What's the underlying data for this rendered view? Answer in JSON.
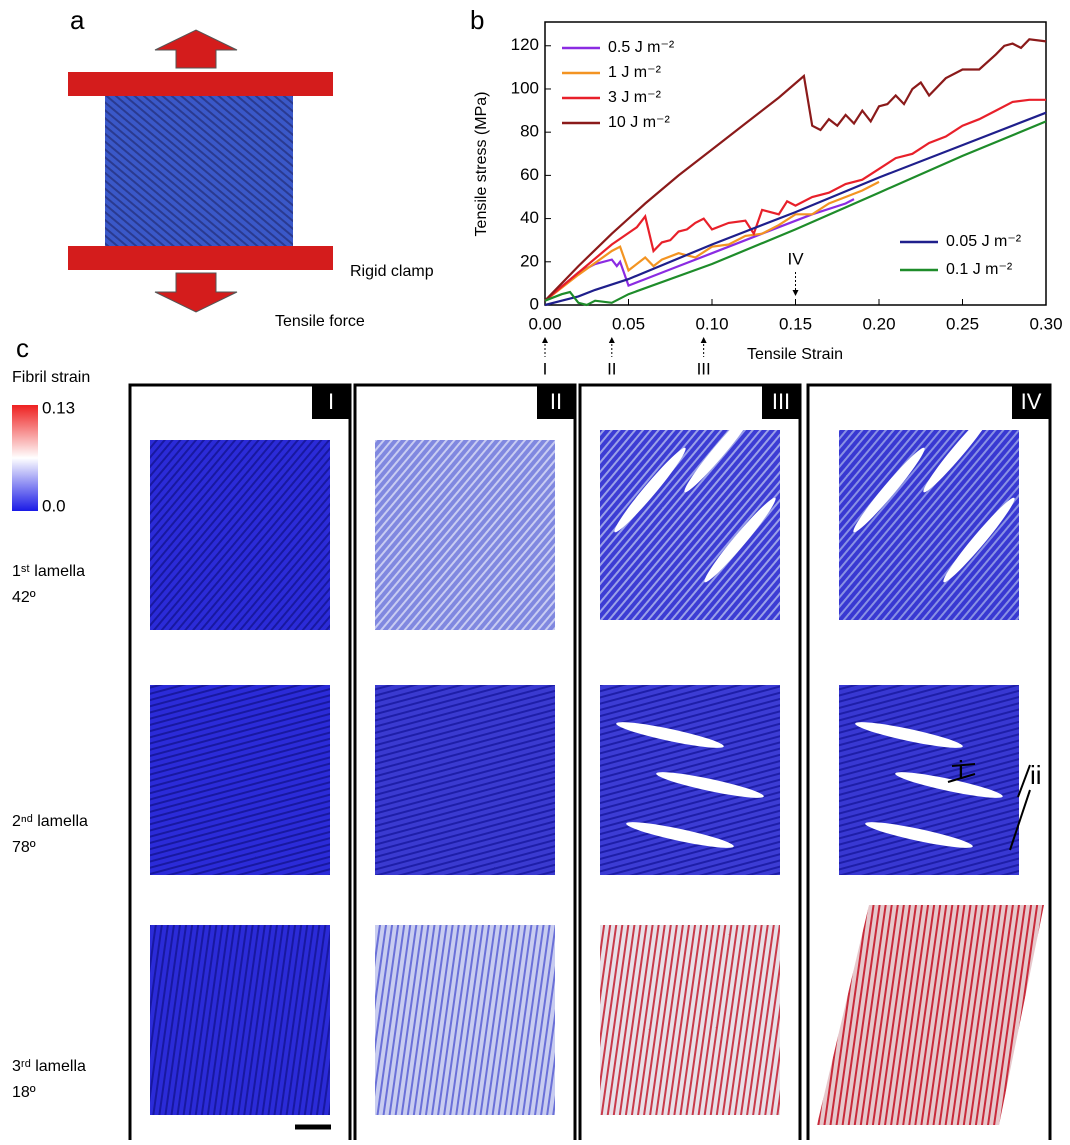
{
  "panel_labels": [
    "a",
    "b",
    "c"
  ],
  "panel_a": {
    "clamp_label": "Rigid clamp",
    "force_label": "Tensile force"
  },
  "chart_data": {
    "type": "line",
    "x_label": "Tensile Strain",
    "y_label": "Tensile stress (MPa)",
    "xlim": [
      0,
      0.3
    ],
    "ylim": [
      0,
      131
    ],
    "xticks": [
      {
        "value": 0,
        "label": "0.00"
      },
      {
        "value": 0.05,
        "label": "0.05"
      },
      {
        "value": 0.1,
        "label": "0.10"
      },
      {
        "value": 0.15,
        "label": "0.15"
      },
      {
        "value": 0.2,
        "label": "0.20"
      },
      {
        "value": 0.25,
        "label": "0.25"
      },
      {
        "value": 0.3,
        "label": "0.30"
      }
    ],
    "yticks": [
      0,
      20,
      40,
      60,
      80,
      100,
      120
    ],
    "series": [
      {
        "name": "0.5 J m⁻²",
        "color": "#8b2be2",
        "x": [
          0,
          0.02,
          0.03,
          0.04,
          0.043,
          0.045,
          0.05,
          0.06,
          0.08,
          0.1,
          0.12,
          0.14,
          0.16,
          0.18,
          0.185
        ],
        "values": [
          2,
          15,
          19,
          21,
          18,
          20,
          9,
          12,
          18,
          24,
          30,
          36,
          42,
          47,
          49
        ]
      },
      {
        "name": "1 J m⁻²",
        "color": "#f39422",
        "x": [
          0,
          0.02,
          0.04,
          0.045,
          0.05,
          0.06,
          0.065,
          0.07,
          0.08,
          0.09,
          0.1,
          0.11,
          0.12,
          0.13,
          0.14,
          0.15,
          0.16,
          0.17,
          0.18,
          0.19,
          0.2
        ],
        "values": [
          2,
          14,
          25,
          27,
          16,
          22,
          18,
          21,
          24,
          22,
          27,
          28,
          32,
          33,
          37,
          42,
          42,
          47,
          50,
          53,
          57
        ]
      },
      {
        "name": "3 J m⁻²",
        "color": "#e8202a",
        "x": [
          0,
          0.02,
          0.04,
          0.055,
          0.06,
          0.065,
          0.07,
          0.075,
          0.08,
          0.085,
          0.09,
          0.095,
          0.1,
          0.11,
          0.12,
          0.125,
          0.13,
          0.14,
          0.145,
          0.15,
          0.16,
          0.17,
          0.18,
          0.19,
          0.2,
          0.21,
          0.22,
          0.23,
          0.24,
          0.25,
          0.26,
          0.27,
          0.28,
          0.29,
          0.3
        ],
        "values": [
          2,
          15,
          28,
          36,
          41,
          25,
          29,
          30,
          34,
          35,
          38,
          40,
          35,
          38,
          39,
          33,
          44,
          42,
          48,
          46,
          50,
          52,
          56,
          58,
          63,
          68,
          70,
          75,
          78,
          83,
          86,
          90,
          94,
          95,
          95
        ]
      },
      {
        "name": "10 J m⁻²",
        "color": "#8b1a1a",
        "x": [
          0,
          0.02,
          0.04,
          0.06,
          0.08,
          0.1,
          0.12,
          0.14,
          0.155,
          0.16,
          0.165,
          0.17,
          0.175,
          0.18,
          0.185,
          0.19,
          0.195,
          0.2,
          0.205,
          0.21,
          0.215,
          0.22,
          0.225,
          0.23,
          0.24,
          0.25,
          0.26,
          0.27,
          0.275,
          0.28,
          0.285,
          0.29,
          0.3
        ],
        "values": [
          2,
          18,
          33,
          47,
          60,
          72,
          84,
          96,
          106,
          83,
          81,
          86,
          83,
          88,
          84,
          90,
          85,
          92,
          93,
          97,
          93,
          100,
          103,
          97,
          105,
          109,
          109,
          116,
          120,
          121,
          119,
          123,
          122
        ]
      },
      {
        "name": "0.05 J m⁻²",
        "color": "#1f1f8c",
        "x": [
          0,
          0.01,
          0.02,
          0.03,
          0.05,
          0.1,
          0.15,
          0.2,
          0.25,
          0.3
        ],
        "values": [
          0,
          2,
          4,
          7,
          12,
          28,
          43,
          59,
          74,
          89
        ]
      },
      {
        "name": "0.1 J m⁻²",
        "color": "#1e8c2a",
        "x": [
          0,
          0.01,
          0.015,
          0.02,
          0.025,
          0.03,
          0.04,
          0.05,
          0.1,
          0.15,
          0.2,
          0.25,
          0.3
        ],
        "values": [
          2,
          5,
          6,
          1,
          0,
          2,
          1,
          5,
          19,
          35,
          52,
          69,
          85
        ]
      }
    ],
    "annotations": [
      {
        "text": "I",
        "x": 0
      },
      {
        "text": "II",
        "x": 0.04
      },
      {
        "text": "III",
        "x": 0.095
      },
      {
        "text": "IV",
        "x": 0.15
      }
    ]
  },
  "panel_c": {
    "colorbar_title": "Fibril strain",
    "colorbar_ticks": [
      {
        "value": 0,
        "label": "0.0"
      },
      0.13
    ],
    "stages": [
      "I",
      "II",
      "III",
      "IV"
    ],
    "lamellae": [
      {
        "name": "1ˢᵗ lamella",
        "angle": "42º"
      },
      {
        "name": "2ⁿᵈ lamella",
        "angle": "78º"
      },
      {
        "name": "3ʳᵈ lamella",
        "angle": "18º"
      }
    ],
    "annotations": [
      "i",
      "ii"
    ]
  }
}
